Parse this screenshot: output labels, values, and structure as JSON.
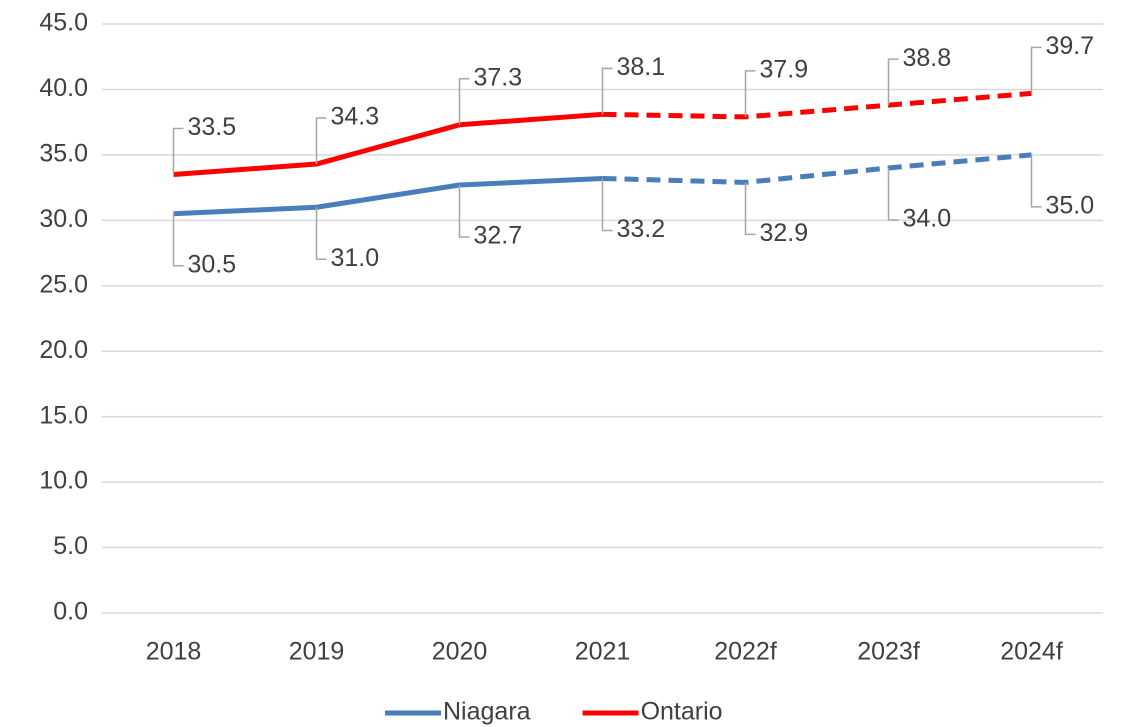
{
  "chart_data": {
    "type": "line",
    "categories": [
      "2018",
      "2019",
      "2020",
      "2021",
      "2022f",
      "2023f",
      "2024f"
    ],
    "series": [
      {
        "name": "Niagara",
        "color": "#4a7ebb",
        "values": [
          30.5,
          31.0,
          32.7,
          33.2,
          32.9,
          34.0,
          35.0
        ],
        "value_labels": [
          "30.5",
          "31.0",
          "32.7",
          "33.2",
          "32.9",
          "34.0",
          "35.0"
        ],
        "label_position": "below"
      },
      {
        "name": "Ontario",
        "color": "#ff0000",
        "values": [
          33.5,
          34.3,
          37.3,
          38.1,
          37.9,
          38.8,
          39.7
        ],
        "value_labels": [
          "33.5",
          "34.3",
          "37.3",
          "38.1",
          "37.9",
          "38.8",
          "39.7"
        ],
        "label_position": "above"
      }
    ],
    "dashed_from_category": "2021",
    "ylim": [
      0,
      45
    ],
    "yticks": [
      {
        "value": 0,
        "label": "0.0"
      },
      {
        "value": 5,
        "label": "5.0"
      },
      {
        "value": 10,
        "label": "10.0"
      },
      {
        "value": 15,
        "label": "15.0"
      },
      {
        "value": 20,
        "label": "20.0"
      },
      {
        "value": 25,
        "label": "25.0"
      },
      {
        "value": 30,
        "label": "30.0"
      },
      {
        "value": 35,
        "label": "35.0"
      },
      {
        "value": 40,
        "label": "40.0"
      },
      {
        "value": 45,
        "label": "45.0"
      }
    ],
    "grid": true,
    "legend": "bottom"
  }
}
